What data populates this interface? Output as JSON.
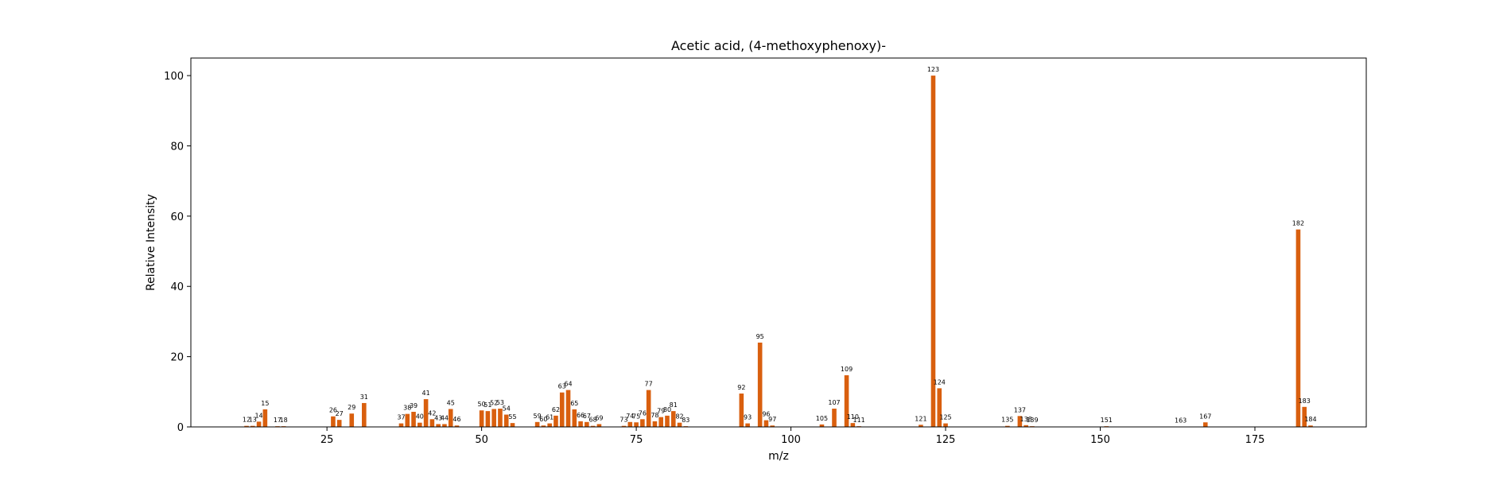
{
  "chart_data": {
    "type": "bar",
    "title": "Acetic acid, (4-methoxyphenoxy)-",
    "xlabel": "m/z",
    "ylabel": "Relative Intensity",
    "xlim": [
      3,
      193
    ],
    "ylim": [
      0,
      105
    ],
    "xticks": [
      25,
      50,
      75,
      100,
      125,
      150,
      175
    ],
    "yticks": [
      0,
      20,
      40,
      60,
      80,
      100
    ],
    "grid": false,
    "color": "#d95f0e",
    "x": [
      12,
      13,
      14,
      15,
      17,
      18,
      26,
      27,
      29,
      31,
      37,
      38,
      39,
      40,
      41,
      42,
      43,
      44,
      45,
      46,
      50,
      51,
      52,
      53,
      54,
      55,
      59,
      60,
      61,
      62,
      63,
      64,
      65,
      66,
      67,
      68,
      69,
      73,
      74,
      75,
      76,
      77,
      78,
      79,
      80,
      81,
      82,
      83,
      92,
      93,
      95,
      96,
      97,
      105,
      107,
      109,
      110,
      111,
      121,
      123,
      124,
      125,
      135,
      137,
      138,
      139,
      151,
      163,
      167,
      182,
      183,
      184
    ],
    "values": [
      0.3,
      0.3,
      1.5,
      5.0,
      0.2,
      0.2,
      3.0,
      2.0,
      3.8,
      6.8,
      1.0,
      3.7,
      4.3,
      1.2,
      7.9,
      2.2,
      0.8,
      0.8,
      5.1,
      0.4,
      4.7,
      4.5,
      5.1,
      5.2,
      3.5,
      1.1,
      1.4,
      0.4,
      1.0,
      3.2,
      9.8,
      10.5,
      5.0,
      1.6,
      1.4,
      0.3,
      0.8,
      0.3,
      1.4,
      1.3,
      2.2,
      10.5,
      1.6,
      2.8,
      3.2,
      4.5,
      1.2,
      0.2,
      9.5,
      1.0,
      24.0,
      1.9,
      0.4,
      0.7,
      5.2,
      14.7,
      1.1,
      0.2,
      0.6,
      100.0,
      11.0,
      1.0,
      0.3,
      3.1,
      0.5,
      0.2,
      0.2,
      0.1,
      1.3,
      56.2,
      5.7,
      0.4
    ],
    "labels": [
      "12",
      "13",
      "14",
      "15",
      "17",
      "18",
      "26",
      "27",
      "29",
      "31",
      "37",
      "38",
      "39",
      "40",
      "41",
      "42",
      "43",
      "44",
      "45",
      "46",
      "50",
      "51",
      "52",
      "53",
      "54",
      "55",
      "59",
      "60",
      "61",
      "62",
      "63",
      "64",
      "65",
      "66",
      "67",
      "68",
      "69",
      "73",
      "74",
      "75",
      "76",
      "77",
      "78",
      "79",
      "80",
      "81",
      "82",
      "83",
      "92",
      "93",
      "95",
      "96",
      "97",
      "105",
      "107",
      "109",
      "110",
      "111",
      "121",
      "123",
      "124",
      "125",
      "135",
      "137",
      "138",
      "139",
      "151",
      "163",
      "167",
      "182",
      "183",
      "184"
    ]
  }
}
